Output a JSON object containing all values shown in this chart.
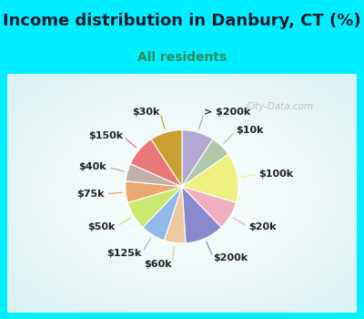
{
  "title": "Income distribution in Danbury, CT (%)",
  "subtitle": "All residents",
  "title_color": "#1a1a2e",
  "subtitle_color": "#2e8b57",
  "bg_cyan": "#00eeff",
  "watermark": "City-Data.com",
  "labels": [
    "> $200k",
    "$10k",
    "$100k",
    "$20k",
    "$200k",
    "$60k",
    "$125k",
    "$50k",
    "$75k",
    "$40k",
    "$150k",
    "$30k"
  ],
  "values": [
    9,
    6,
    14,
    8,
    11,
    6,
    7,
    8,
    6,
    5,
    9,
    9
  ],
  "colors": [
    "#b3a8d4",
    "#aec8a8",
    "#f0f080",
    "#f0b0c0",
    "#8888cc",
    "#f0c8a0",
    "#90b8e8",
    "#c8e870",
    "#e8a870",
    "#c0b0a8",
    "#e87878",
    "#c8a030"
  ],
  "label_fontsize": 8,
  "label_color": "#222222",
  "title_fontsize": 13,
  "subtitle_fontsize": 10
}
